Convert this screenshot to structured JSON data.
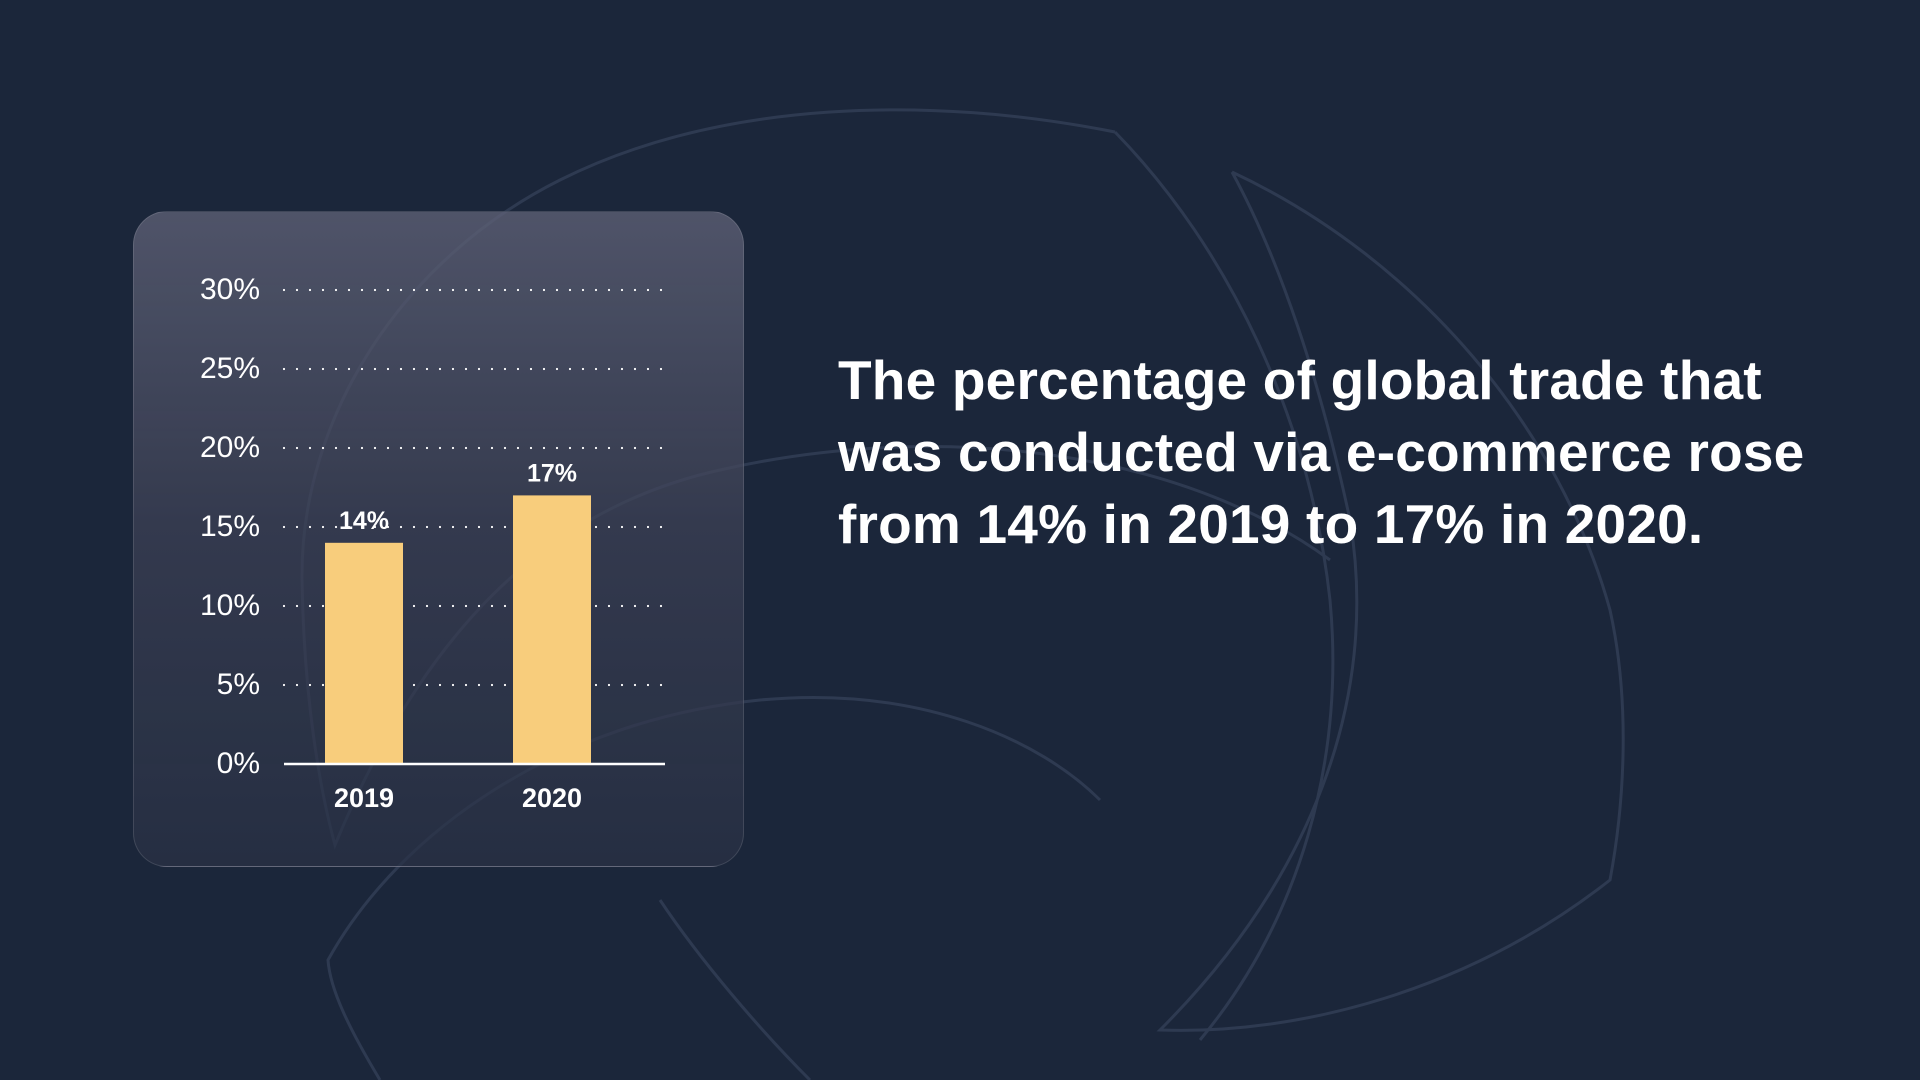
{
  "headline": "The percentage of global trade that was conducted via e-commerce rose from 14% in 2019 to 17% in 2020.",
  "colors": {
    "background": "#1b263a",
    "bar": "#f8cd7c",
    "text": "#ffffff"
  },
  "chart_data": {
    "type": "bar",
    "categories": [
      "2019",
      "2020"
    ],
    "values": [
      14,
      17
    ],
    "value_labels": [
      "14%",
      "17%"
    ],
    "y_ticks": [
      "0%",
      "5%",
      "10%",
      "15%",
      "20%",
      "25%",
      "30%"
    ],
    "ylim": [
      0,
      30
    ],
    "grid": "dotted horizontal"
  }
}
